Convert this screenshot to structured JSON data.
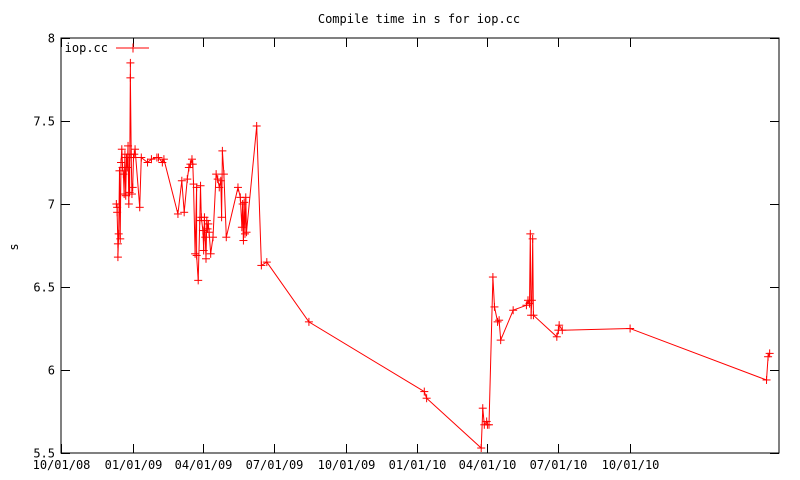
{
  "chart_data": {
    "type": "line",
    "title": "Compile time in s for iop.cc",
    "xlabel": "",
    "ylabel": "s",
    "ylim": [
      5.5,
      8
    ],
    "yticks": [
      5.5,
      6,
      6.5,
      7,
      7.5,
      8
    ],
    "ytick_labels": [
      "5.5",
      "6",
      "6.5",
      "7",
      "7.5",
      "8"
    ],
    "xlim": [
      "2008-10-01",
      "2011-04-10"
    ],
    "xticks": [
      "2008-10-01",
      "2009-01-01",
      "2009-04-01",
      "2009-07-01",
      "2009-10-01",
      "2010-01-01",
      "2010-04-01",
      "2010-07-01",
      "2010-10-01"
    ],
    "xtick_labels": [
      "10/01/08",
      "01/01/09",
      "04/01/09",
      "07/01/09",
      "10/01/09",
      "01/01/10",
      "04/01/10",
      "07/01/10",
      "10/01/10"
    ],
    "grid": false,
    "legend_position": "top-left",
    "series": [
      {
        "name": "iop.cc",
        "color": "#ff0000",
        "marker": "plus",
        "points": [
          [
            "2008-12-11",
            7.0
          ],
          [
            "2008-12-12",
            6.98
          ],
          [
            "2008-12-12",
            6.95
          ],
          [
            "2008-12-13",
            6.76
          ],
          [
            "2008-12-13",
            6.68
          ],
          [
            "2008-12-14",
            6.82
          ],
          [
            "2008-12-15",
            7.2
          ],
          [
            "2008-12-16",
            6.79
          ],
          [
            "2008-12-17",
            7.25
          ],
          [
            "2008-12-18",
            7.33
          ],
          [
            "2008-12-19",
            7.22
          ],
          [
            "2008-12-20",
            7.18
          ],
          [
            "2008-12-21",
            7.06
          ],
          [
            "2008-12-22",
            7.3
          ],
          [
            "2008-12-23",
            7.05
          ],
          [
            "2008-12-24",
            7.28
          ],
          [
            "2008-12-25",
            7.22
          ],
          [
            "2008-12-26",
            7.35
          ],
          [
            "2008-12-27",
            7.0
          ],
          [
            "2008-12-28",
            7.28
          ],
          [
            "2008-12-28",
            7.07
          ],
          [
            "2008-12-29",
            7.85
          ],
          [
            "2008-12-29",
            7.76
          ],
          [
            "2008-12-30",
            7.3
          ],
          [
            "2008-12-31",
            7.06
          ],
          [
            "2009-01-01",
            7.1
          ],
          [
            "2009-01-02",
            7.28
          ],
          [
            "2009-01-03",
            7.3
          ],
          [
            "2009-01-04",
            7.33
          ],
          [
            "2009-01-10",
            6.98
          ],
          [
            "2009-01-12",
            7.28
          ],
          [
            "2009-01-20",
            7.25
          ],
          [
            "2009-01-25",
            7.27
          ],
          [
            "2009-02-01",
            7.28
          ],
          [
            "2009-02-03",
            7.28
          ],
          [
            "2009-02-08",
            7.25
          ],
          [
            "2009-02-10",
            7.27
          ],
          [
            "2009-02-28",
            6.94
          ],
          [
            "2009-03-05",
            7.14
          ],
          [
            "2009-03-08",
            6.95
          ],
          [
            "2009-03-12",
            7.15
          ],
          [
            "2009-03-14",
            7.22
          ],
          [
            "2009-03-16",
            7.24
          ],
          [
            "2009-03-18",
            7.27
          ],
          [
            "2009-03-19",
            7.24
          ],
          [
            "2009-03-20",
            7.12
          ],
          [
            "2009-03-22",
            6.7
          ],
          [
            "2009-03-24",
            7.1
          ],
          [
            "2009-03-24",
            6.69
          ],
          [
            "2009-03-26",
            6.54
          ],
          [
            "2009-03-28",
            6.9
          ],
          [
            "2009-03-29",
            7.11
          ],
          [
            "2009-03-30",
            6.92
          ],
          [
            "2009-04-01",
            6.84
          ],
          [
            "2009-04-02",
            6.72
          ],
          [
            "2009-04-03",
            6.92
          ],
          [
            "2009-04-04",
            6.8
          ],
          [
            "2009-04-05",
            6.67
          ],
          [
            "2009-04-06",
            6.9
          ],
          [
            "2009-04-07",
            6.85
          ],
          [
            "2009-04-08",
            6.88
          ],
          [
            "2009-04-09",
            6.83
          ],
          [
            "2009-04-11",
            6.7
          ],
          [
            "2009-04-14",
            6.8
          ],
          [
            "2009-04-18",
            7.18
          ],
          [
            "2009-04-20",
            7.15
          ],
          [
            "2009-04-22",
            7.1
          ],
          [
            "2009-04-24",
            7.14
          ],
          [
            "2009-04-25",
            6.92
          ],
          [
            "2009-04-26",
            7.32
          ],
          [
            "2009-04-28",
            7.18
          ],
          [
            "2009-05-01",
            6.8
          ],
          [
            "2009-05-16",
            7.1
          ],
          [
            "2009-05-19",
            7.04
          ],
          [
            "2009-05-21",
            6.86
          ],
          [
            "2009-05-22",
            7.0
          ],
          [
            "2009-05-23",
            6.78
          ],
          [
            "2009-05-24",
            7.01
          ],
          [
            "2009-05-25",
            6.82
          ],
          [
            "2009-05-26",
            7.04
          ],
          [
            "2009-05-27",
            6.83
          ],
          [
            "2009-06-09",
            7.47
          ],
          [
            "2009-06-15",
            6.63
          ],
          [
            "2009-06-22",
            6.65
          ],
          [
            "2009-08-15",
            6.29
          ],
          [
            "2010-01-10",
            5.87
          ],
          [
            "2010-01-13",
            5.83
          ],
          [
            "2010-03-24",
            5.53
          ],
          [
            "2010-03-26",
            5.77
          ],
          [
            "2010-03-28",
            5.67
          ],
          [
            "2010-03-31",
            5.69
          ],
          [
            "2010-04-01",
            5.67
          ],
          [
            "2010-04-03",
            5.67
          ],
          [
            "2010-04-08",
            6.56
          ],
          [
            "2010-04-10",
            6.38
          ],
          [
            "2010-04-14",
            6.29
          ],
          [
            "2010-04-16",
            6.3
          ],
          [
            "2010-04-18",
            6.18
          ],
          [
            "2010-05-04",
            6.36
          ],
          [
            "2010-05-21",
            6.39
          ],
          [
            "2010-05-23",
            6.42
          ],
          [
            "2010-05-25",
            6.4
          ],
          [
            "2010-05-26",
            6.82
          ],
          [
            "2010-05-27",
            6.33
          ],
          [
            "2010-05-28",
            6.42
          ],
          [
            "2010-05-29",
            6.79
          ],
          [
            "2010-05-30",
            6.33
          ],
          [
            "2010-06-29",
            6.2
          ],
          [
            "2010-07-01",
            6.24
          ],
          [
            "2010-07-02",
            6.27
          ],
          [
            "2010-07-06",
            6.24
          ],
          [
            "2010-10-01",
            6.25
          ],
          [
            "2011-03-25",
            5.94
          ],
          [
            "2011-03-27",
            6.08
          ],
          [
            "2011-03-29",
            6.1
          ]
        ]
      }
    ]
  }
}
